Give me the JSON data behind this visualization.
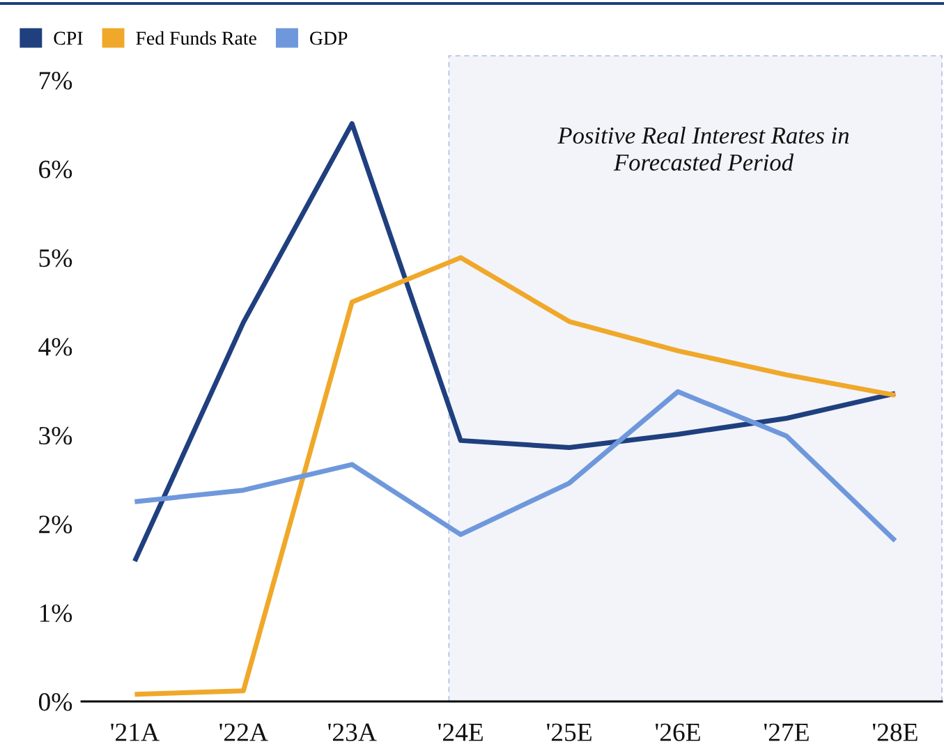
{
  "chart_data": {
    "type": "line",
    "categories": [
      "'21A",
      "'22A",
      "'23A",
      "'24E",
      "'25E",
      "'26E",
      "'27E",
      "'28E"
    ],
    "series": [
      {
        "name": "CPI",
        "color": "#1f3f7f",
        "values": [
          1.58,
          4.27,
          6.51,
          2.94,
          2.86,
          3.01,
          3.19,
          3.47
        ]
      },
      {
        "name": "Fed Funds Rate",
        "color": "#f0a82a",
        "values": [
          0.08,
          0.12,
          4.5,
          5.0,
          4.28,
          3.95,
          3.68,
          3.45
        ]
      },
      {
        "name": "GDP",
        "color": "#6f98dc",
        "values": [
          2.25,
          2.38,
          2.67,
          1.88,
          2.46,
          3.49,
          2.99,
          1.81
        ]
      }
    ],
    "ylim": [
      0,
      7
    ],
    "yticks": [
      {
        "value": 0,
        "label": "0%"
      },
      {
        "value": 1,
        "label": "1%"
      },
      {
        "value": 2,
        "label": "2%"
      },
      {
        "value": 3,
        "label": "3%"
      },
      {
        "value": 4,
        "label": "4%"
      },
      {
        "value": 5,
        "label": "5%"
      },
      {
        "value": 6,
        "label": "6%"
      },
      {
        "value": 7,
        "label": "7%"
      }
    ],
    "annotations": [
      "Positive Real Interest Rates in Forecasted Period"
    ],
    "legend": "top left",
    "grid": false,
    "marker": "none",
    "line_style": "solid"
  }
}
